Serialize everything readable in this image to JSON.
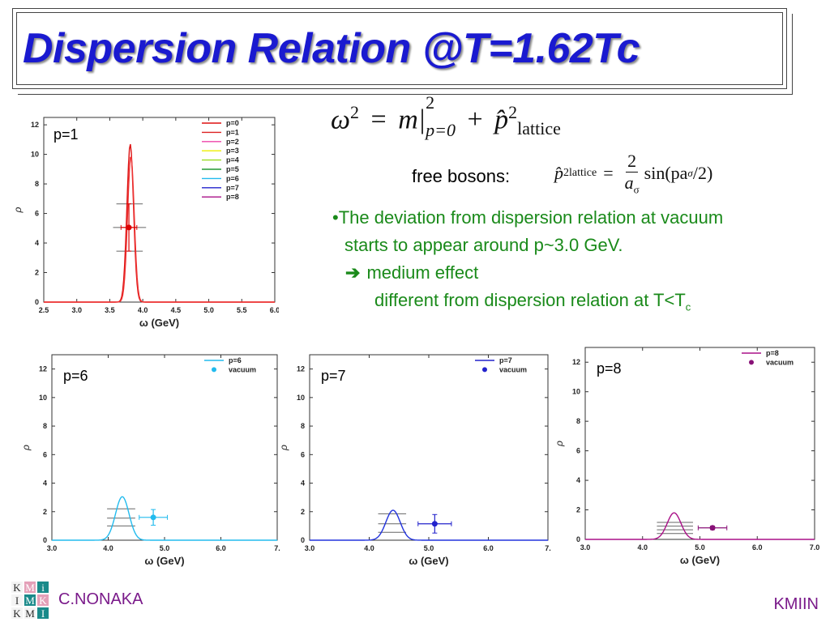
{
  "title": "Dispersion Relation @T=1.62Tc",
  "equation": {
    "omega": "ω",
    "sq": "2",
    "eq": "=",
    "m": "m",
    "bar_sup": "2",
    "bar_sub": "p=0",
    "plus": "+",
    "p": "p̂",
    "p_sup": "2",
    "p_sub": "lattice"
  },
  "free_bosons": {
    "label": "free bosons:",
    "lhs": "p̂",
    "lhs_sup": "2",
    "lhs_sub": "lattice",
    "eq": "=",
    "num": "2",
    "den": "a",
    "den_sub": "σ",
    "rhs": "sin(pa",
    "rhs_sub": "σ",
    "rhs_tail": "/2)"
  },
  "notes": {
    "line1": "•The deviation from dispersion relation at vacuum",
    "line2": "starts to appear around p~3.0 GeV.",
    "arrow": "➔",
    "line3": "medium effect",
    "line4": "different from dispersion relation at T<T",
    "line4_sub": "c"
  },
  "footer": {
    "author": "C.NONAKA",
    "right": "KMIIN",
    "logo": [
      "K",
      "M",
      "i",
      "I",
      "M",
      "K",
      "K",
      "M",
      "I"
    ]
  },
  "colors": {
    "title": "#1a1ad0",
    "notes": "#1a8a1a",
    "footer": "#7a1a8a"
  },
  "chart_data": [
    {
      "type": "line",
      "label": "p=1",
      "xlabel": "ω (GeV)",
      "ylabel": "ρ",
      "xlim": [
        2.5,
        6.0
      ],
      "ylim": [
        0,
        12.5
      ],
      "xticks": [
        "2.5",
        "3.0",
        "3.5",
        "4.0",
        "4.5",
        "5.0",
        "5.5",
        "6.0"
      ],
      "yticks": [
        "0",
        "2",
        "4",
        "6",
        "8",
        "10",
        "12"
      ],
      "legend": "top-right",
      "legend_entries": [
        {
          "name": "p=0",
          "color": "#dd1111"
        },
        {
          "name": "p=1",
          "color": "#dd2222"
        },
        {
          "name": "p=2",
          "color": "#ee44aa"
        },
        {
          "name": "p=3",
          "color": "#eeee00"
        },
        {
          "name": "p=4",
          "color": "#99dd22"
        },
        {
          "name": "p=5",
          "color": "#229933"
        },
        {
          "name": "p=6",
          "color": "#22bbee"
        },
        {
          "name": "p=7",
          "color": "#2222cc"
        },
        {
          "name": "p=8",
          "color": "#aa1188"
        }
      ],
      "series": [
        {
          "color": "#dd1111",
          "peak_x": 3.81,
          "peak_y": 10.7,
          "width": 0.05
        },
        {
          "color": "#ee3333",
          "peak_x": 3.82,
          "peak_y": 9.9,
          "width": 0.05
        }
      ],
      "point": {
        "x": 3.79,
        "y": 5.05,
        "xerr": 0.12,
        "yerr": 1.6,
        "color": "#dd0000"
      },
      "gray_bars": [
        {
          "x0": 3.6,
          "x1": 4.0,
          "y": 6.65
        },
        {
          "x0": 3.6,
          "x1": 4.0,
          "y": 3.45
        },
        {
          "x0": 3.55,
          "x1": 4.05,
          "y": 5.05
        }
      ]
    },
    {
      "type": "line",
      "label": "p=6",
      "xlabel": "ω (GeV)",
      "ylabel": "ρ",
      "xlim": [
        3.0,
        7.0
      ],
      "ylim": [
        0,
        13
      ],
      "xticks": [
        "3.0",
        "4.0",
        "5.0",
        "6.0",
        "7."
      ],
      "yticks": [
        "0",
        "2",
        "4",
        "6",
        "8",
        "10",
        "12"
      ],
      "legend": "top-right",
      "legend_entries": [
        {
          "name": "p=6",
          "color": "#22bbee"
        },
        {
          "name": "vacuum",
          "color": "#22bbee",
          "marker": true
        }
      ],
      "series": [
        {
          "color": "#22bbee",
          "peak_x": 4.25,
          "peak_y": 3.05,
          "width": 0.12
        }
      ],
      "point": {
        "x": 4.8,
        "y": 1.6,
        "xerr": 0.25,
        "yerr": 0.55,
        "color": "#22bbee"
      },
      "gray_bars": [
        {
          "x0": 3.98,
          "x1": 4.48,
          "y": 2.2
        },
        {
          "x0": 3.98,
          "x1": 4.48,
          "y": 1.55
        },
        {
          "x0": 3.98,
          "x1": 4.48,
          "y": 1.0
        }
      ]
    },
    {
      "type": "line",
      "label": "p=7",
      "xlabel": "ω (GeV)",
      "ylabel": "ρ",
      "xlim": [
        3.0,
        7.0
      ],
      "ylim": [
        0,
        13
      ],
      "xticks": [
        "3.0",
        "4.0",
        "5.0",
        "6.0",
        "7."
      ],
      "yticks": [
        "0",
        "2",
        "4",
        "6",
        "8",
        "10",
        "12"
      ],
      "legend": "top-right",
      "legend_entries": [
        {
          "name": "p=7",
          "color": "#2222cc"
        },
        {
          "name": "vacuum",
          "color": "#2222cc",
          "marker": true
        }
      ],
      "series": [
        {
          "color": "#2233dd",
          "peak_x": 4.4,
          "peak_y": 2.1,
          "width": 0.12
        }
      ],
      "point": {
        "x": 5.1,
        "y": 1.15,
        "xerr": 0.28,
        "yerr": 0.65,
        "color": "#2222cc"
      },
      "gray_bars": [
        {
          "x0": 4.15,
          "x1": 4.62,
          "y": 1.85
        },
        {
          "x0": 4.15,
          "x1": 4.62,
          "y": 1.15
        },
        {
          "x0": 4.15,
          "x1": 4.62,
          "y": 0.55
        }
      ]
    },
    {
      "type": "line",
      "label": "p=8",
      "xlabel": "ω (GeV)",
      "ylabel": "ρ",
      "xlim": [
        3.0,
        7.0
      ],
      "ylim": [
        0,
        13
      ],
      "xticks": [
        "3.0",
        "4.0",
        "5.0",
        "6.0",
        "7.0"
      ],
      "yticks": [
        "0",
        "2",
        "4",
        "6",
        "8",
        "10",
        "12"
      ],
      "legend": "top-right",
      "legend_entries": [
        {
          "name": "p=8",
          "color": "#aa1188"
        },
        {
          "name": "vacuum",
          "color": "#881177",
          "marker": true
        }
      ],
      "series": [
        {
          "color": "#aa1188",
          "peak_x": 4.55,
          "peak_y": 1.8,
          "width": 0.12
        }
      ],
      "point": {
        "x": 5.22,
        "y": 0.78,
        "xerr": 0.25,
        "yerr": 0.12,
        "color": "#881177"
      },
      "gray_bars": [
        {
          "x0": 4.25,
          "x1": 4.88,
          "y": 1.15
        },
        {
          "x0": 4.25,
          "x1": 4.88,
          "y": 0.9
        },
        {
          "x0": 4.25,
          "x1": 4.88,
          "y": 0.65
        },
        {
          "x0": 4.25,
          "x1": 4.88,
          "y": 0.4
        }
      ]
    }
  ]
}
